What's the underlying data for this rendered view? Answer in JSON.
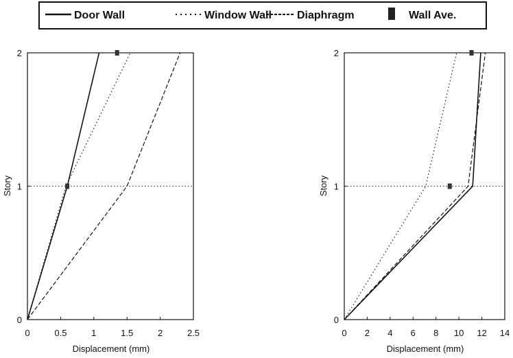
{
  "legend": {
    "items": [
      {
        "label": "Door Wall",
        "style": "solid"
      },
      {
        "label": "Window Wall",
        "style": "dotted"
      },
      {
        "label": "Diaphragm",
        "style": "dashed"
      },
      {
        "label": "Wall Ave.",
        "style": "marker"
      }
    ]
  },
  "chart_data": [
    {
      "type": "line",
      "xlabel": "Displacement (mm)",
      "ylabel": "Story",
      "xlim": [
        0,
        2.5
      ],
      "ylim": [
        0,
        2
      ],
      "xticks": [
        "0",
        "0.5",
        "1",
        "1.5",
        "2",
        "2.5"
      ],
      "yticks": [
        "0",
        "1",
        "2"
      ],
      "reference_line_y": 1,
      "series": [
        {
          "name": "Door Wall",
          "style": "solid",
          "x": [
            0,
            0.6,
            1.08
          ],
          "y": [
            0,
            1,
            2
          ]
        },
        {
          "name": "Window Wall",
          "style": "dotted",
          "x": [
            0,
            0.58,
            1.55
          ],
          "y": [
            0,
            1,
            2
          ]
        },
        {
          "name": "Diaphragm",
          "style": "dashed",
          "x": [
            0,
            1.5,
            2.3
          ],
          "y": [
            0,
            1,
            2
          ]
        },
        {
          "name": "Wall Ave.",
          "style": "marker",
          "x": [
            0.6,
            1.35
          ],
          "y": [
            1,
            2
          ]
        }
      ]
    },
    {
      "type": "line",
      "xlabel": "Displacement (mm)",
      "ylabel": "Story",
      "xlim": [
        0,
        14
      ],
      "ylim": [
        0,
        2
      ],
      "xticks": [
        "0",
        "2",
        "4",
        "6",
        "8",
        "10",
        "12",
        "14"
      ],
      "yticks": [
        "0",
        "1",
        "2"
      ],
      "reference_line_y": 1,
      "series": [
        {
          "name": "Door Wall",
          "style": "solid",
          "x": [
            0,
            11.2,
            11.9
          ],
          "y": [
            0,
            1,
            2
          ]
        },
        {
          "name": "Window Wall",
          "style": "dotted",
          "x": [
            0,
            7.1,
            9.8
          ],
          "y": [
            0,
            1,
            2
          ]
        },
        {
          "name": "Diaphragm",
          "style": "dashed",
          "x": [
            0,
            10.8,
            12.3
          ],
          "y": [
            0,
            1,
            2
          ]
        },
        {
          "name": "Wall Ave.",
          "style": "marker",
          "x": [
            9.2,
            11.1
          ],
          "y": [
            1,
            2
          ]
        }
      ]
    }
  ]
}
